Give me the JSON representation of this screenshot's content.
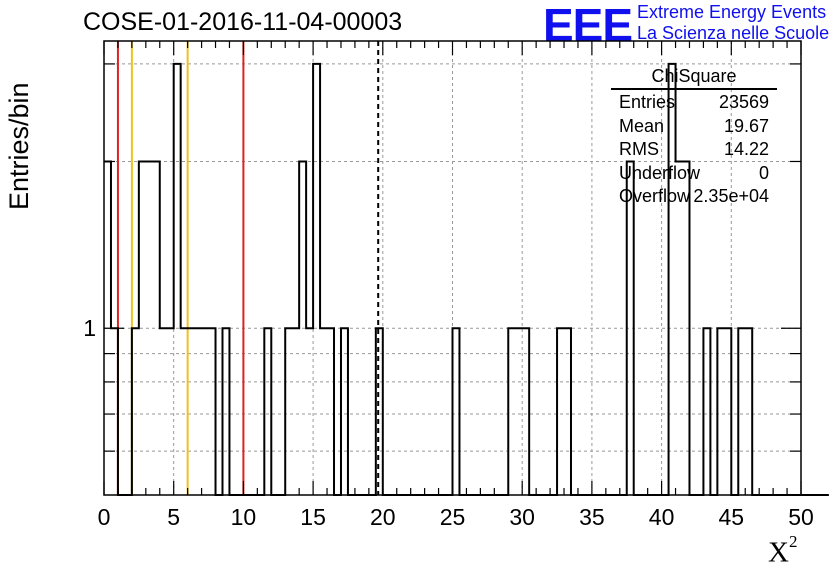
{
  "header": {
    "title": "COSE-01-2016-11-04-00003",
    "logo_mark": "EEE",
    "logo_line1": "Extreme Energy Events",
    "logo_line2": "La Scienza nelle Scuole"
  },
  "stats": {
    "title": "ChiSquare",
    "rows": [
      {
        "key": "Entries",
        "value": "23569"
      },
      {
        "key": "Mean",
        "value": "19.67"
      },
      {
        "key": "RMS",
        "value": "14.22"
      },
      {
        "key": "Underflow",
        "value": "0"
      },
      {
        "key": "Overflow",
        "value": "2.35e+04"
      }
    ]
  },
  "colors": {
    "histogram": "#000000",
    "red_marker": "#dd2222",
    "yellow_marker": "#f0c020",
    "mean_line": "#000000",
    "grid": "#999999"
  },
  "chart_data": {
    "type": "histogram",
    "title": "COSE-01-2016-11-04-00003",
    "xlabel": "X",
    "xlabel_superscript": "2",
    "ylabel": "Entries/bin",
    "xlim": [
      0,
      50
    ],
    "y_scale": "log",
    "ylim": [
      0.5,
      3.3
    ],
    "grid": true,
    "bin_width": 0.5,
    "x_tick_labels": [
      "0",
      "5",
      "10",
      "15",
      "20",
      "25",
      "30",
      "35",
      "40",
      "45",
      "50"
    ],
    "y_tick_labels": [
      "1"
    ],
    "y_tick_values": [
      1
    ],
    "bin_counts": [
      2,
      1,
      0,
      0,
      1,
      2,
      2,
      2,
      1,
      1,
      3,
      1,
      1,
      1,
      1,
      1,
      0,
      1,
      0,
      0,
      0,
      0,
      0,
      1,
      0,
      0,
      1,
      1,
      2,
      1,
      3,
      1,
      1,
      0,
      1,
      0,
      0,
      0,
      0,
      1,
      0,
      0,
      0,
      0,
      0,
      0,
      0,
      0,
      0,
      0,
      1,
      0,
      0,
      0,
      0,
      0,
      0,
      0,
      1,
      1,
      1,
      0,
      0,
      0,
      0,
      1,
      1,
      0,
      0,
      0,
      0,
      0,
      0,
      0,
      0,
      2,
      0,
      0,
      0,
      0,
      0,
      3,
      2,
      2,
      0,
      0,
      1,
      0,
      1,
      1,
      0,
      1,
      1,
      0,
      0,
      0,
      0,
      0,
      0,
      0,
      0,
      0,
      0,
      0
    ],
    "reference_lines": [
      {
        "x": 1.0,
        "color": "red"
      },
      {
        "x": 2.0,
        "color": "yellow"
      },
      {
        "x": 6.0,
        "color": "yellow"
      },
      {
        "x": 10.0,
        "color": "red"
      }
    ],
    "mean_line": {
      "x": 19.67,
      "style": "dashed"
    },
    "legend": "top-right"
  }
}
